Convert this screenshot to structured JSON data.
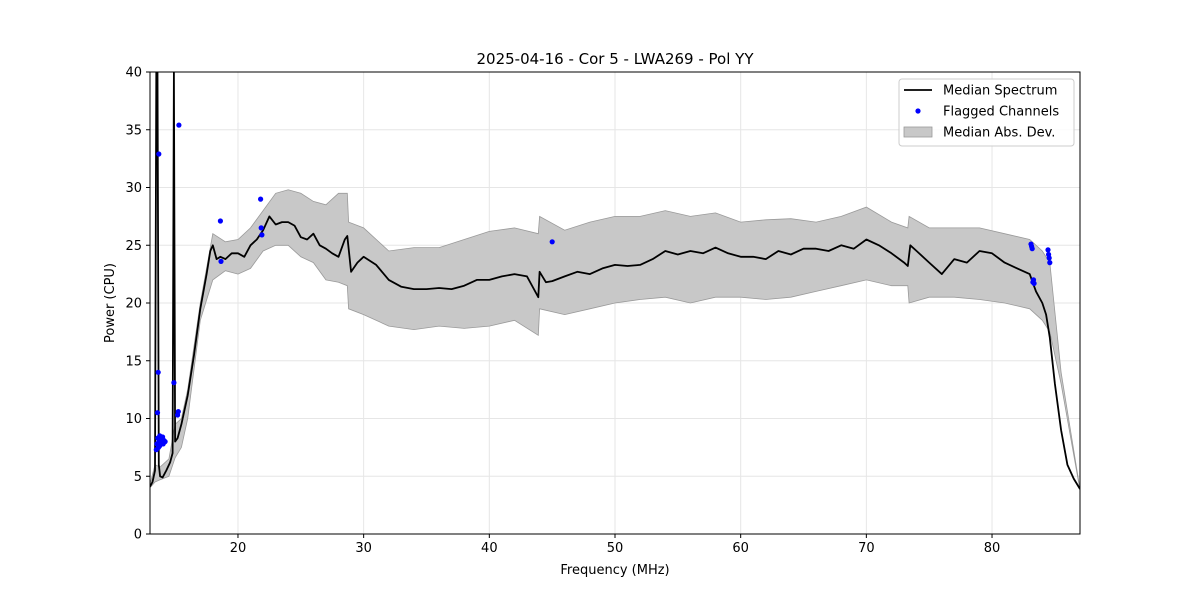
{
  "chart_data": {
    "type": "line",
    "title": "2025-04-16 - Cor 5 - LWA269 - Pol YY",
    "xlabel": "Frequency (MHz)",
    "ylabel": "Power (CPU)",
    "xlim": [
      13,
      87
    ],
    "ylim": [
      0,
      40
    ],
    "xticks": [
      20,
      30,
      40,
      50,
      60,
      70,
      80
    ],
    "yticks": [
      0,
      5,
      10,
      15,
      20,
      25,
      30,
      35,
      40
    ],
    "grid": true,
    "legend_position": "top-right",
    "colors": {
      "median": "#000000",
      "flagged": "#0000ff",
      "mad_fill": "#c8c8c8",
      "mad_edge": "#9a9a9a",
      "grid": "#e6e6e6"
    },
    "legend": [
      {
        "label": "Median Spectrum",
        "kind": "line"
      },
      {
        "label": "Flagged Channels",
        "kind": "dot"
      },
      {
        "label": "Median Abs. Dev.",
        "kind": "patch"
      }
    ],
    "series": [
      {
        "name": "Median Spectrum",
        "x": [
          13.0,
          13.2,
          13.4,
          13.5,
          13.6,
          13.7,
          13.8,
          14.0,
          14.3,
          14.6,
          14.8,
          14.9,
          15.0,
          15.2,
          15.5,
          16.0,
          16.5,
          17.0,
          17.5,
          17.8,
          18.0,
          18.3,
          18.6,
          19.0,
          19.5,
          20.0,
          20.5,
          21.0,
          21.5,
          22.0,
          22.5,
          23.0,
          23.5,
          24.0,
          24.5,
          25.0,
          25.5,
          26.0,
          26.5,
          27.0,
          27.5,
          28.0,
          28.5,
          28.7,
          29.0,
          29.5,
          30.0,
          31.0,
          32.0,
          33.0,
          34.0,
          35.0,
          36.0,
          37.0,
          38.0,
          39.0,
          40.0,
          41.0,
          42.0,
          43.0,
          43.5,
          43.9,
          44.0,
          44.5,
          45.0,
          46.0,
          47.0,
          48.0,
          49.0,
          50.0,
          51.0,
          52.0,
          53.0,
          54.0,
          55.0,
          56.0,
          57.0,
          58.0,
          59.0,
          60.0,
          61.0,
          62.0,
          63.0,
          64.0,
          65.0,
          66.0,
          67.0,
          68.0,
          69.0,
          70.0,
          71.0,
          72.0,
          73.0,
          73.3,
          73.5,
          74.0,
          75.0,
          76.0,
          77.0,
          78.0,
          79.0,
          80.0,
          81.0,
          82.0,
          83.0,
          83.5,
          84.0,
          84.3,
          84.6,
          85.0,
          85.5,
          86.0,
          86.5,
          87.0
        ],
        "values": [
          4.1,
          4.5,
          5.5,
          40.0,
          40.0,
          6.0,
          5.0,
          4.9,
          5.5,
          6.2,
          7.0,
          40.0,
          8.0,
          8.3,
          9.5,
          12.0,
          15.5,
          19.5,
          22.5,
          24.5,
          25.0,
          23.8,
          24.0,
          23.8,
          24.3,
          24.3,
          24.0,
          25.0,
          25.5,
          26.3,
          27.5,
          26.8,
          27.0,
          27.0,
          26.7,
          25.7,
          25.5,
          26.0,
          25.0,
          24.7,
          24.3,
          24.0,
          25.5,
          25.8,
          22.7,
          23.5,
          24.0,
          23.3,
          22.0,
          21.4,
          21.2,
          21.2,
          21.3,
          21.2,
          21.5,
          22.0,
          22.0,
          22.3,
          22.5,
          22.3,
          21.3,
          20.5,
          22.7,
          21.8,
          21.9,
          22.3,
          22.7,
          22.5,
          23.0,
          23.3,
          23.2,
          23.3,
          23.8,
          24.5,
          24.2,
          24.5,
          24.3,
          24.8,
          24.3,
          24.0,
          24.0,
          23.8,
          24.5,
          24.2,
          24.7,
          24.7,
          24.5,
          25.0,
          24.7,
          25.5,
          25.0,
          24.3,
          23.5,
          23.2,
          25.0,
          24.5,
          23.5,
          22.5,
          23.8,
          23.5,
          24.5,
          24.3,
          23.5,
          23.0,
          22.5,
          21.0,
          20.0,
          19.0,
          17.0,
          13.0,
          9.0,
          6.0,
          4.8,
          3.9
        ]
      },
      {
        "name": "Median Abs. Dev.",
        "x": [
          13.0,
          13.4,
          13.8,
          14.5,
          15.0,
          15.5,
          16.0,
          17.0,
          18.0,
          19.0,
          20.0,
          21.0,
          22.0,
          23.0,
          24.0,
          25.0,
          26.0,
          27.0,
          28.0,
          28.7,
          28.8,
          30.0,
          32.0,
          34.0,
          36.0,
          38.0,
          40.0,
          42.0,
          43.9,
          44.0,
          46.0,
          48.0,
          50.0,
          52.0,
          54.0,
          56.0,
          58.0,
          60.0,
          62.0,
          64.0,
          66.0,
          68.0,
          70.0,
          72.0,
          73.3,
          73.4,
          75.0,
          77.0,
          79.0,
          81.0,
          83.0,
          84.0,
          84.6,
          85.5,
          87.0
        ],
        "upper": [
          4.3,
          6.0,
          5.8,
          6.5,
          9.5,
          10.0,
          12.5,
          20.0,
          26.0,
          25.3,
          25.5,
          26.5,
          28.0,
          29.5,
          29.8,
          29.5,
          28.8,
          28.5,
          29.5,
          29.5,
          27.0,
          26.5,
          24.5,
          24.8,
          24.8,
          25.5,
          26.2,
          26.5,
          26.0,
          27.5,
          26.3,
          27.0,
          27.5,
          27.5,
          28.0,
          27.5,
          27.8,
          27.0,
          27.2,
          27.3,
          27.0,
          27.5,
          28.3,
          27.0,
          26.5,
          27.5,
          26.5,
          26.5,
          26.5,
          26.0,
          25.5,
          24.5,
          23.5,
          14.0,
          3.9
        ],
        "lower": [
          4.0,
          4.5,
          4.7,
          5.0,
          6.6,
          7.5,
          10.0,
          18.5,
          22.0,
          22.8,
          22.5,
          23.0,
          24.5,
          25.0,
          25.0,
          24.0,
          23.5,
          22.0,
          21.8,
          21.5,
          19.5,
          19.0,
          18.0,
          17.7,
          18.0,
          17.8,
          18.0,
          18.5,
          17.2,
          19.5,
          19.0,
          19.5,
          20.0,
          20.3,
          20.5,
          20.0,
          20.5,
          20.5,
          20.3,
          20.5,
          21.0,
          21.5,
          22.0,
          21.5,
          21.5,
          20.0,
          20.5,
          20.5,
          20.3,
          20.0,
          19.5,
          18.5,
          17.5,
          13.0,
          3.8
        ]
      }
    ],
    "flagged": {
      "name": "Flagged Channels",
      "x": [
        13.5,
        13.55,
        13.6,
        13.62,
        13.65,
        13.68,
        13.7,
        13.72,
        13.75,
        13.78,
        13.8,
        13.85,
        13.9,
        13.95,
        14.0,
        14.05,
        14.1,
        14.2,
        14.9,
        15.2,
        15.25,
        15.3,
        18.6,
        18.65,
        21.8,
        21.85,
        21.9,
        45.0,
        83.1,
        83.15,
        83.2,
        83.25,
        83.3,
        83.35,
        84.45,
        84.5,
        84.55,
        84.6
      ],
      "values": [
        7.3,
        7.8,
        10.5,
        8.3,
        14.0,
        7.5,
        32.9,
        8.0,
        7.6,
        8.5,
        7.7,
        8.0,
        7.9,
        8.2,
        8.4,
        7.8,
        8.1,
        8.0,
        13.1,
        10.3,
        10.6,
        35.4,
        27.1,
        23.6,
        29.0,
        26.5,
        25.9,
        25.3,
        25.1,
        24.9,
        24.7,
        21.8,
        22.0,
        21.7,
        24.6,
        24.2,
        23.9,
        23.5
      ]
    }
  }
}
